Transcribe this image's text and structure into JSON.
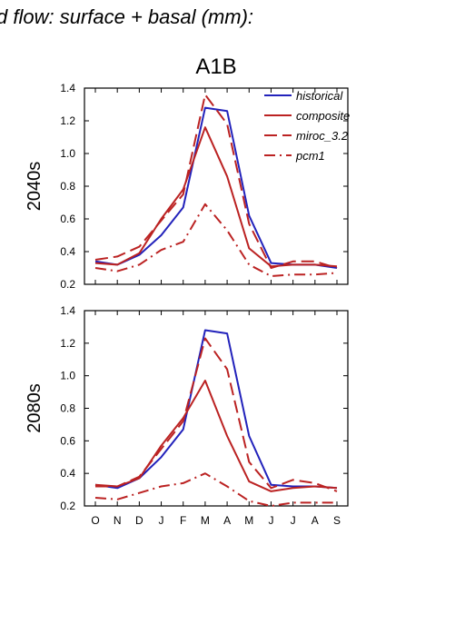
{
  "figure_title": "d flow: surface + basal (mm):",
  "scenario": "A1B",
  "colors": {
    "historical": "#2222bb",
    "projections": "#bb2222",
    "axes": "#000000"
  },
  "chart_data": [
    {
      "type": "line",
      "ylabel": "2040s",
      "ylim": [
        0.2,
        1.4
      ],
      "yticks": [
        "0.2",
        "0.4",
        "0.6",
        "0.8",
        "1.0",
        "1.2",
        "1.4"
      ],
      "categories": [
        "O",
        "N",
        "D",
        "J",
        "F",
        "M",
        "A",
        "M",
        "J",
        "J",
        "A",
        "S"
      ],
      "show_xtick_labels": false,
      "legend_position": "top-right",
      "series": [
        {
          "name": "historical",
          "color": "#2222bb",
          "dash": "solid",
          "values": [
            0.34,
            0.32,
            0.38,
            0.5,
            0.67,
            1.28,
            1.26,
            0.62,
            0.33,
            0.32,
            0.32,
            0.3
          ]
        },
        {
          "name": "composite",
          "color": "#bb2222",
          "dash": "solid",
          "values": [
            0.33,
            0.32,
            0.39,
            0.6,
            0.78,
            1.16,
            0.86,
            0.42,
            0.31,
            0.32,
            0.32,
            0.31
          ]
        },
        {
          "name": "miroc_3.2",
          "color": "#bb2222",
          "dash": "dash",
          "values": [
            0.35,
            0.37,
            0.43,
            0.59,
            0.75,
            1.36,
            1.18,
            0.57,
            0.3,
            0.34,
            0.34,
            0.3
          ]
        },
        {
          "name": "pcm1",
          "color": "#bb2222",
          "dash": "dashdot",
          "values": [
            0.3,
            0.28,
            0.32,
            0.41,
            0.46,
            0.69,
            0.53,
            0.32,
            0.25,
            0.26,
            0.26,
            0.27
          ]
        }
      ]
    },
    {
      "type": "line",
      "ylabel": "2080s",
      "ylim": [
        0.2,
        1.4
      ],
      "yticks": [
        "0.2",
        "0.4",
        "0.6",
        "0.8",
        "1.0",
        "1.2",
        "1.4"
      ],
      "categories": [
        "O",
        "N",
        "D",
        "J",
        "F",
        "M",
        "A",
        "M",
        "J",
        "J",
        "A",
        "S"
      ],
      "show_xtick_labels": true,
      "series": [
        {
          "name": "historical",
          "color": "#2222bb",
          "dash": "solid",
          "values": [
            0.33,
            0.31,
            0.37,
            0.5,
            0.67,
            1.28,
            1.26,
            0.63,
            0.33,
            0.32,
            0.32,
            0.31
          ]
        },
        {
          "name": "composite",
          "color": "#bb2222",
          "dash": "solid",
          "values": [
            0.33,
            0.32,
            0.37,
            0.57,
            0.74,
            0.97,
            0.63,
            0.35,
            0.29,
            0.31,
            0.32,
            0.31
          ]
        },
        {
          "name": "miroc_3.2",
          "color": "#bb2222",
          "dash": "dash",
          "values": [
            0.32,
            0.32,
            0.38,
            0.55,
            0.72,
            1.23,
            1.04,
            0.47,
            0.31,
            0.36,
            0.34,
            0.29
          ]
        },
        {
          "name": "pcm1",
          "color": "#bb2222",
          "dash": "dashdot",
          "values": [
            0.25,
            0.24,
            0.28,
            0.32,
            0.34,
            0.4,
            0.32,
            0.23,
            0.2,
            0.22,
            0.22,
            0.22
          ]
        }
      ]
    }
  ]
}
